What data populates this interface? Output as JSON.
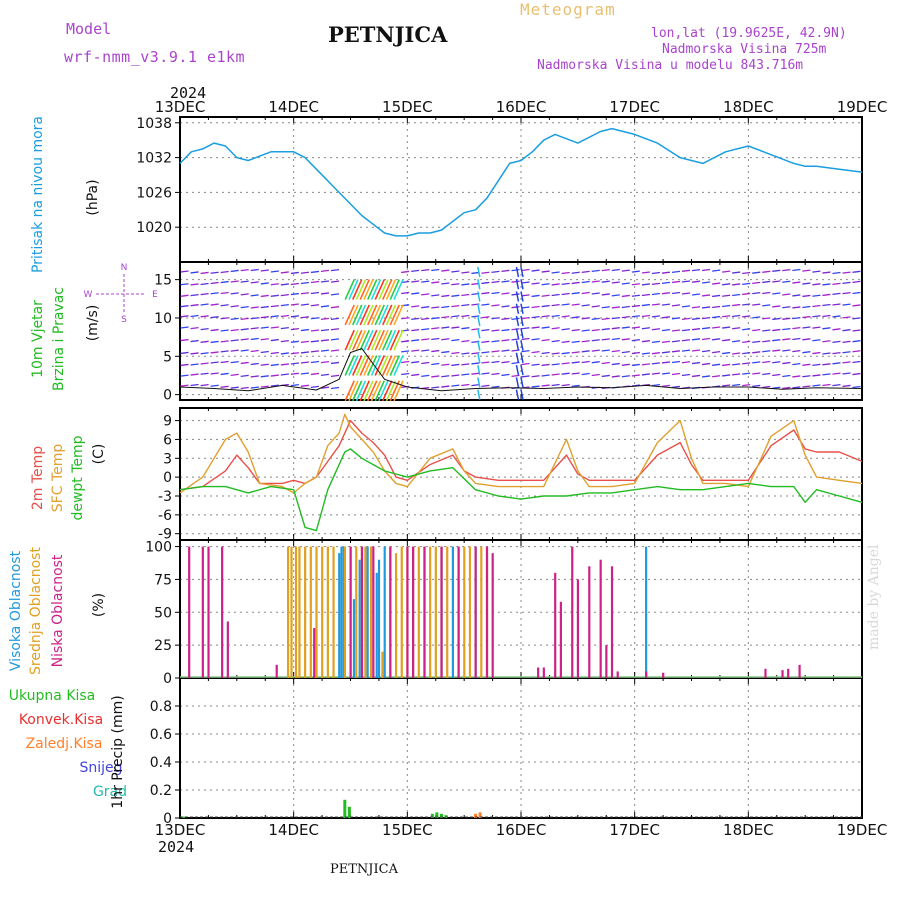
{
  "header": {
    "model_label": "Model",
    "model_name": "wrf-nmm_v3.9.1 e1km",
    "station": "PETNJICA",
    "meteogram": "Meteogram",
    "lonlat": "lon,lat (19.9625E, 42.9N)",
    "elevation": "Nadmorska Visina 725m",
    "model_elevation": "Nadmorska Visina u modelu 843.716m",
    "year_top": "2024",
    "year_bottom": "2024",
    "footer": "PETNJICA",
    "credit": "made by Angel"
  },
  "colors": {
    "pressure": "#1a9ee0",
    "wind_label": "#22bb22",
    "wind_units": "#aa44cc",
    "temp2m": "#e8504a",
    "sfc": "#e0a030",
    "dewpt": "#22bb22",
    "cloud_high": "#2299dd",
    "cloud_mid": "#e0a020",
    "cloud_low": "#cc2288",
    "precip_total": "#22bb22",
    "precip_conv": "#e83030",
    "precip_frz": "#ff7f2a",
    "precip_snow": "#4444dd",
    "precip_graupel": "#22bbaa"
  },
  "chart_data": [
    {
      "type": "line",
      "panel": "pressure",
      "ylabel_lines": [
        "Pritisak na nivou mora"
      ],
      "yunit": "(hPa)",
      "x_ticks": [
        "13DEC",
        "14DEC",
        "15DEC",
        "16DEC",
        "17DEC",
        "18DEC",
        "19DEC"
      ],
      "ylim": [
        1014,
        1039
      ],
      "y_ticks": [
        1020,
        1026,
        1032,
        1038
      ],
      "x": [
        0,
        0.1,
        0.2,
        0.3,
        0.4,
        0.5,
        0.6,
        0.8,
        1.0,
        1.1,
        1.2,
        1.35,
        1.5,
        1.6,
        1.7,
        1.8,
        1.9,
        2.0,
        2.1,
        2.2,
        2.3,
        2.4,
        2.5,
        2.6,
        2.7,
        2.8,
        2.9,
        3.0,
        3.1,
        3.2,
        3.3,
        3.5,
        3.7,
        3.8,
        3.9,
        4.0,
        4.2,
        4.4,
        4.6,
        4.8,
        5.0,
        5.2,
        5.4,
        5.5,
        5.6,
        5.8,
        6.0
      ],
      "values": [
        1031,
        1033,
        1033.5,
        1034.5,
        1034,
        1032,
        1031.5,
        1033,
        1033,
        1032,
        1030,
        1027,
        1024,
        1022,
        1020.5,
        1019,
        1018.5,
        1018.5,
        1019,
        1019,
        1019.5,
        1021,
        1022.5,
        1023,
        1025,
        1028,
        1031,
        1031.5,
        1033,
        1035,
        1036,
        1034.5,
        1036.5,
        1037,
        1036.5,
        1036,
        1034.5,
        1032,
        1031,
        1033,
        1034,
        1032.5,
        1031,
        1030.5,
        1030.5,
        1030,
        1029.5
      ]
    },
    {
      "type": "scatter",
      "panel": "wind",
      "ylabel_lines": [
        "10m Vjetar",
        "Brzina i Pravac"
      ],
      "yunit": "(m/s)",
      "compass": [
        "N",
        "S",
        "W",
        "E"
      ],
      "ylim": [
        -0.7,
        17.3
      ],
      "y_ticks": [
        0,
        5,
        10,
        15
      ],
      "x": [
        0,
        0.3,
        0.6,
        0.9,
        1.2,
        1.4,
        1.5,
        1.6,
        1.7,
        1.8,
        2.0,
        2.3,
        2.6,
        2.9,
        3.2,
        3.5,
        3.8,
        4.1,
        4.4,
        4.7,
        5.0,
        5.3,
        5.6,
        6.0
      ],
      "values": [
        1,
        0.8,
        0.5,
        1.2,
        0.6,
        2,
        5.5,
        6,
        4,
        2,
        1,
        0.5,
        0.8,
        0.9,
        0.8,
        1,
        0.9,
        1.2,
        0.8,
        1,
        1,
        0.7,
        0.9,
        0.8
      ]
    },
    {
      "type": "line",
      "panel": "temperature",
      "ylabel_lines": [
        "2m Temp",
        "SFC Temp",
        "dewpt Temp"
      ],
      "yunit": "(C)",
      "ylim": [
        -10,
        11
      ],
      "y_ticks": [
        -9,
        -6,
        -3,
        0,
        3,
        6,
        9
      ],
      "series": [
        {
          "name": "2m Temp",
          "x": [
            0,
            0.2,
            0.4,
            0.5,
            0.6,
            0.7,
            0.9,
            1.0,
            1.1,
            1.2,
            1.3,
            1.4,
            1.45,
            1.5,
            1.6,
            1.7,
            1.8,
            1.9,
            2.0,
            2.2,
            2.4,
            2.5,
            2.6,
            2.8,
            3.0,
            3.2,
            3.4,
            3.5,
            3.6,
            3.8,
            4.0,
            4.2,
            4.4,
            4.5,
            4.6,
            4.8,
            5.0,
            5.2,
            5.4,
            5.5,
            5.6,
            5.8,
            6.0
          ],
          "values": [
            -2,
            -1.5,
            1,
            3.5,
            1.5,
            -1,
            -1,
            -0.5,
            -1,
            0,
            2.5,
            5,
            7,
            9,
            7,
            5.5,
            3.5,
            0,
            -0.5,
            2,
            3.5,
            1,
            0,
            -0.5,
            -0.5,
            -0.5,
            3.5,
            0.5,
            -0.5,
            -0.5,
            -0.5,
            3.5,
            5.5,
            2,
            -0.5,
            -0.5,
            -0.5,
            5,
            7.5,
            4.5,
            4,
            4,
            2.5
          ]
        },
        {
          "name": "SFC Temp",
          "x": [
            0,
            0.2,
            0.4,
            0.5,
            0.6,
            0.7,
            0.9,
            1.0,
            1.1,
            1.2,
            1.3,
            1.4,
            1.45,
            1.5,
            1.6,
            1.7,
            1.8,
            1.9,
            2.0,
            2.2,
            2.4,
            2.5,
            2.6,
            2.8,
            3.0,
            3.2,
            3.4,
            3.5,
            3.6,
            3.8,
            4.0,
            4.2,
            4.4,
            4.5,
            4.6,
            4.8,
            5.0,
            5.2,
            5.4,
            5.5,
            5.6,
            5.8,
            6.0
          ],
          "values": [
            -2.5,
            0,
            6,
            7,
            4,
            -1,
            -1.5,
            -2.5,
            -1,
            0,
            5,
            7,
            10,
            8,
            6,
            4,
            1,
            -1,
            -1.5,
            3,
            4.5,
            1,
            -1,
            -1.5,
            -1.5,
            -1.5,
            6,
            1,
            -1.5,
            -1.5,
            -1,
            5.5,
            9,
            3,
            -1,
            -1,
            -1.5,
            6.5,
            9,
            3.5,
            0,
            -0.5,
            -1
          ]
        },
        {
          "name": "dewpt Temp",
          "x": [
            0,
            0.2,
            0.4,
            0.6,
            0.8,
            1.0,
            1.1,
            1.2,
            1.3,
            1.4,
            1.45,
            1.5,
            1.6,
            1.7,
            1.8,
            1.9,
            2.0,
            2.2,
            2.4,
            2.6,
            2.8,
            3.0,
            3.2,
            3.4,
            3.6,
            3.8,
            4.0,
            4.2,
            4.4,
            4.6,
            4.8,
            5.0,
            5.2,
            5.4,
            5.5,
            5.6,
            5.8,
            6.0
          ],
          "values": [
            -2,
            -1.5,
            -1.5,
            -2.5,
            -1.5,
            -2,
            -8,
            -8.5,
            -2,
            2,
            4,
            4.5,
            3,
            2,
            1,
            0.5,
            0,
            1,
            1.5,
            -2,
            -3,
            -3.5,
            -3,
            -3,
            -2.5,
            -2.5,
            -2,
            -1.5,
            -2,
            -2,
            -1.5,
            -1,
            -1.5,
            -1.5,
            -4,
            -2,
            -3,
            -4
          ]
        }
      ]
    },
    {
      "type": "bar",
      "panel": "clouds",
      "ylabel_lines": [
        "Visoka Oblacnost",
        "Srednja Oblacnost",
        "Niska Oblacnost"
      ],
      "yunit": "(%)",
      "ylim": [
        0,
        105
      ],
      "y_ticks": [
        0,
        25,
        50,
        75,
        100
      ],
      "series": [
        {
          "name": "Visoka Oblacnost",
          "x": [
            1.4,
            1.42,
            1.44,
            1.45,
            1.53,
            1.58,
            1.65,
            1.73,
            1.75,
            1.8,
            1.85,
            2.3,
            2.4,
            2.6,
            4.1
          ],
          "values": [
            95,
            100,
            100,
            100,
            60,
            90,
            100,
            80,
            90,
            100,
            100,
            100,
            100,
            100,
            100
          ]
        },
        {
          "name": "Srednja Oblacnost",
          "x": [
            0.95,
            0.98,
            1.02,
            1.05,
            1.1,
            1.15,
            1.2,
            1.25,
            1.3,
            1.35,
            1.45,
            1.5,
            1.55,
            1.6,
            1.63,
            1.68,
            1.78,
            1.9,
            1.95,
            2.0,
            2.05,
            2.1,
            2.15,
            2.2,
            2.25,
            2.3,
            2.35,
            2.45,
            2.5,
            2.55,
            2.65,
            2.7
          ],
          "values": [
            100,
            100,
            100,
            100,
            100,
            100,
            100,
            100,
            100,
            100,
            100,
            100,
            100,
            100,
            100,
            100,
            20,
            95,
            100,
            100,
            100,
            100,
            100,
            100,
            100,
            100,
            100,
            100,
            100,
            100,
            100,
            100
          ]
        },
        {
          "name": "Niska Oblacnost",
          "x": [
            0.08,
            0.2,
            0.25,
            0.37,
            0.42,
            0.85,
            1.18,
            1.5,
            1.6,
            1.7,
            1.85,
            2.0,
            2.05,
            2.15,
            2.3,
            2.45,
            2.6,
            2.7,
            2.75,
            3.15,
            3.2,
            3.3,
            3.35,
            3.45,
            3.5,
            3.6,
            3.7,
            3.75,
            3.8,
            3.85,
            4.1,
            4.25,
            5.15,
            5.3,
            5.35,
            5.45
          ],
          "values": [
            100,
            100,
            100,
            100,
            43,
            10,
            38,
            100,
            100,
            100,
            100,
            100,
            100,
            100,
            100,
            100,
            100,
            100,
            95,
            8,
            8,
            80,
            58,
            100,
            75,
            85,
            90,
            25,
            85,
            5,
            5,
            4,
            7,
            6,
            7,
            10
          ]
        }
      ]
    },
    {
      "type": "bar",
      "panel": "precip",
      "ylabel_lines": [
        "1hr Precip"
      ],
      "yunit": "(mm)",
      "legend": [
        "Ukupna Kisa",
        "Konvek.Kisa",
        "Zaledj.Kisa",
        "Snijeg",
        "Grad"
      ],
      "ylim": [
        0,
        1.0
      ],
      "y_ticks": [
        0,
        0.2,
        0.4,
        0.6,
        0.8
      ],
      "series": [
        {
          "name": "Ukupna Kisa",
          "x": [
            0.03,
            1.45,
            1.49,
            2.22,
            2.26,
            2.3,
            2.34
          ],
          "values": [
            0.01,
            0.13,
            0.08,
            0.03,
            0.04,
            0.03,
            0.02
          ]
        },
        {
          "name": "Zaledj.Kisa",
          "x": [
            2.6,
            2.64
          ],
          "values": [
            0.03,
            0.04
          ]
        }
      ]
    }
  ]
}
